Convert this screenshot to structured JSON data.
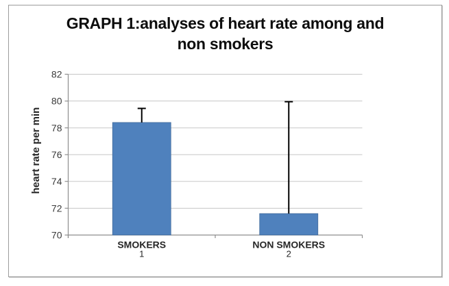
{
  "chart_data": {
    "type": "bar",
    "title_line1": "GRAPH 1:analyses of heart rate among and",
    "title_line2": "non smokers",
    "ylabel": "heart rate per min",
    "xlabel": "",
    "categories": [
      "SMOKERS",
      "NON SMOKERS"
    ],
    "category_numbers": [
      "1",
      "2"
    ],
    "values": [
      78.4,
      71.6
    ],
    "error_top_values": [
      79.45,
      79.95
    ],
    "ylim": [
      70,
      82
    ],
    "ytick_step": 2,
    "yticks": [
      70,
      72,
      74,
      76,
      78,
      80,
      82
    ],
    "grid": true,
    "legend": false,
    "colors": {
      "bar_fill": "#4f81bd",
      "bar_border": "#446c9b",
      "gridline": "#c6c6c6",
      "axis_line": "#8e8e8e",
      "tick_label": "#3a3a3a",
      "category_label": "#262626",
      "error_bar": "#000000",
      "title": "#0d0d0d"
    }
  }
}
